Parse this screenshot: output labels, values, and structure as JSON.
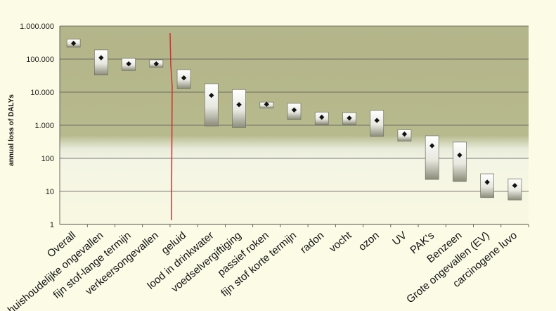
{
  "chart_data": {
    "type": "range-bar",
    "title": "",
    "ylabel": "annual loss of DALYs",
    "xlabel": "",
    "yscale": "log",
    "ylim": [
      1,
      1000000
    ],
    "yticks": [
      {
        "value": 1000000,
        "label": "1.000.000"
      },
      {
        "value": 100000,
        "label": "100.000"
      },
      {
        "value": 10000,
        "label": "10.000"
      },
      {
        "value": 1000,
        "label": "1.000"
      },
      {
        "value": 100,
        "label": "100"
      },
      {
        "value": 10,
        "label": "10"
      },
      {
        "value": 1,
        "label": "1"
      }
    ],
    "categories": [
      {
        "label": "Overall",
        "low": 230000,
        "high": 400000,
        "point": 300000,
        "highlight": false
      },
      {
        "label": "huishoudelijke ongevallen",
        "low": 33000,
        "high": 190000,
        "point": 110000,
        "highlight": false
      },
      {
        "label": "fijn stof-lange termijn",
        "low": 45000,
        "high": 105000,
        "point": 72000,
        "highlight": false
      },
      {
        "label": "verkeersongevallen",
        "low": 57000,
        "high": 95000,
        "point": 72000,
        "highlight": false
      },
      {
        "label": "geluid",
        "low": 13000,
        "high": 48000,
        "point": 27000,
        "highlight": true
      },
      {
        "label": "lood in drinkwater",
        "low": 950,
        "high": 18000,
        "point": 8000,
        "highlight": false
      },
      {
        "label": "voedselvergiftiging",
        "low": 850,
        "high": 12000,
        "point": 4200,
        "highlight": false
      },
      {
        "label": "passief roken",
        "low": 3300,
        "high": 5000,
        "point": 4300,
        "highlight": false
      },
      {
        "label": "fijn stof korte termijn",
        "low": 1500,
        "high": 4600,
        "point": 2900,
        "highlight": false
      },
      {
        "label": "radon",
        "low": 1050,
        "high": 2500,
        "point": 1750,
        "highlight": false
      },
      {
        "label": "vocht",
        "low": 1050,
        "high": 2400,
        "point": 1650,
        "highlight": false
      },
      {
        "label": "ozon",
        "low": 460,
        "high": 2800,
        "point": 1400,
        "highlight": false
      },
      {
        "label": "UV",
        "low": 330,
        "high": 730,
        "point": 540,
        "highlight": false
      },
      {
        "label": "PAK's",
        "low": 23,
        "high": 480,
        "point": 240,
        "highlight": false
      },
      {
        "label": "Benzeen",
        "low": 20,
        "high": 310,
        "point": 125,
        "highlight": false
      },
      {
        "label": "Grote ongevallen (EV)",
        "low": 6.5,
        "high": 34,
        "point": 19,
        "highlight": false
      },
      {
        "label": "carcinogene luvo",
        "low": 5.5,
        "high": 24,
        "point": 15,
        "highlight": false
      }
    ],
    "divider_after": "verkeersongevallen",
    "colors": {
      "background": "#fbfbe6",
      "band_dark": "#b8bc8f",
      "band_light": "#eef0d8",
      "box_top": "#ffffff",
      "box_bottom": "#8c8c7a",
      "highlight_label": "#c0392b",
      "divider": "#d03030"
    }
  }
}
